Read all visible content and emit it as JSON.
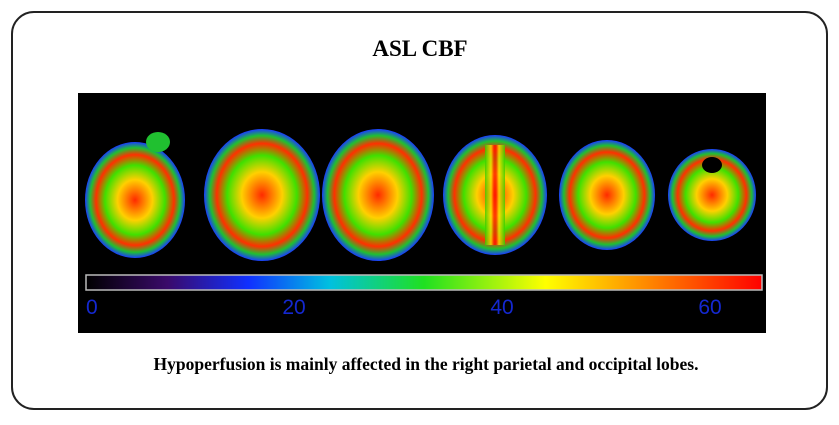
{
  "title": "ASL CBF",
  "colorbar": {
    "range": [
      0,
      65
    ],
    "ticks": [
      0,
      20,
      40,
      60
    ]
  },
  "caption": "Hypoperfusion is mainly affected in the right parietal and occipital lobes."
}
